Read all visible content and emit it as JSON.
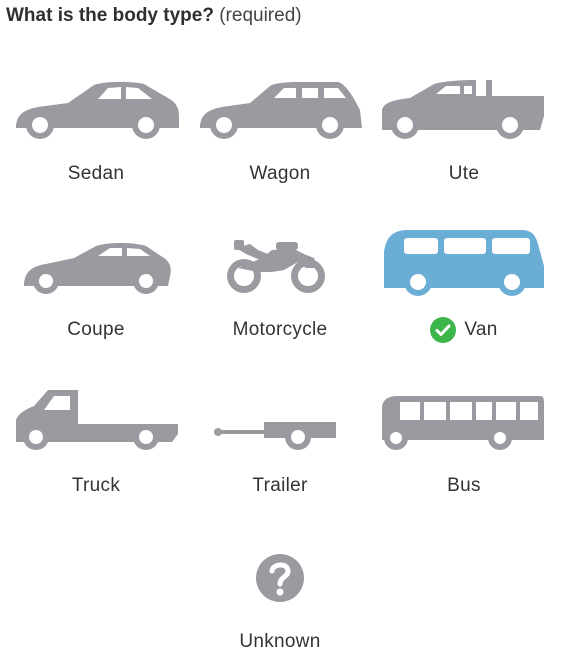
{
  "question": {
    "text": "What is the body type?",
    "required": "(required)"
  },
  "options": [
    {
      "label": "Sedan",
      "icon": "sedan-icon"
    },
    {
      "label": "Wagon",
      "icon": "wagon-icon"
    },
    {
      "label": "Ute",
      "icon": "ute-icon"
    },
    {
      "label": "Coupe",
      "icon": "coupe-icon"
    },
    {
      "label": "Motorcycle",
      "icon": "motorcycle-icon"
    },
    {
      "label": "Van",
      "icon": "van-icon",
      "selected": true
    },
    {
      "label": "Truck",
      "icon": "truck-icon"
    },
    {
      "label": "Trailer",
      "icon": "trailer-icon"
    },
    {
      "label": "Bus",
      "icon": "bus-icon"
    },
    {
      "label": "Unknown",
      "icon": "question-mark-icon"
    }
  ],
  "colors": {
    "icon_default": "#9a9ba1",
    "icon_selected": "#6aaed6",
    "check_green": "#3cb64a",
    "text": "#333333"
  }
}
